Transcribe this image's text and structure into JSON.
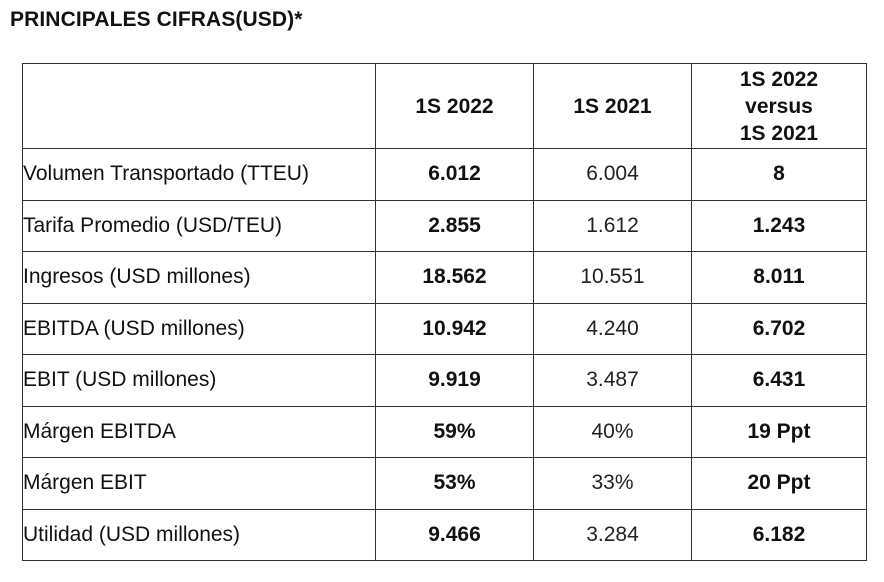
{
  "title": "PRINCIPALES CIFRAS(USD)*",
  "table": {
    "headers": {
      "label": "",
      "col1": "1S 2022",
      "col2": "1S 2021",
      "col3_lines": [
        "1S 2022",
        "versus",
        "1S 2021"
      ]
    },
    "rows": [
      {
        "label": "Volumen Transportado (TTEU)",
        "s2022": "6.012",
        "s2021": "6.004",
        "diff": "8"
      },
      {
        "label": "Tarifa Promedio (USD/TEU)",
        "s2022": "2.855",
        "s2021": "1.612",
        "diff": "1.243"
      },
      {
        "label": "Ingresos (USD millones)",
        "s2022": "18.562",
        "s2021": "10.551",
        "diff": "8.011"
      },
      {
        "label": "EBITDA (USD millones)",
        "s2022": "10.942",
        "s2021": "4.240",
        "diff": "6.702"
      },
      {
        "label": "EBIT (USD millones)",
        "s2022": "9.919",
        "s2021": "3.487",
        "diff": "6.431"
      },
      {
        "label": "Márgen EBITDA",
        "s2022": "59%",
        "s2021": "40%",
        "diff": "19 Ppt"
      },
      {
        "label": "Márgen EBIT",
        "s2022": "53%",
        "s2021": "33%",
        "diff": "20 Ppt"
      },
      {
        "label": "Utilidad (USD millones)",
        "s2022": "9.466",
        "s2021": "3.284",
        "diff": "6.182"
      }
    ]
  }
}
